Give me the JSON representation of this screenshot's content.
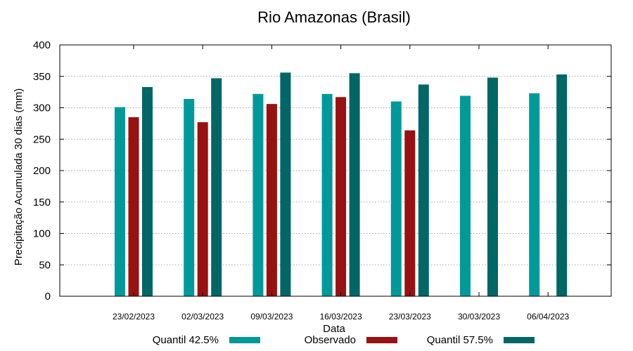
{
  "chart_data": {
    "type": "bar",
    "title": "Rio Amazonas (Brasil)",
    "xlabel": "Data",
    "ylabel": "Precipitação Acumulada 30 dias (mm)",
    "ylim": [
      0,
      400
    ],
    "yticks": [
      0,
      50,
      100,
      150,
      200,
      250,
      300,
      350,
      400
    ],
    "grid": true,
    "legend_position": "bottom",
    "categories": [
      "23/02/2023",
      "02/03/2023",
      "09/03/2023",
      "16/03/2023",
      "23/03/2023",
      "30/03/2023",
      "06/04/2023"
    ],
    "series": [
      {
        "name": "Quantil 42.5%",
        "color": "#009999",
        "values": [
          301,
          314,
          322,
          322,
          310,
          319,
          323
        ]
      },
      {
        "name": "Observado",
        "color": "#991111",
        "values": [
          285,
          277,
          306,
          317,
          264,
          null,
          null
        ]
      },
      {
        "name": "Quantil 57.5%",
        "color": "#006666",
        "values": [
          333,
          347,
          356,
          355,
          337,
          348,
          353
        ]
      }
    ]
  }
}
